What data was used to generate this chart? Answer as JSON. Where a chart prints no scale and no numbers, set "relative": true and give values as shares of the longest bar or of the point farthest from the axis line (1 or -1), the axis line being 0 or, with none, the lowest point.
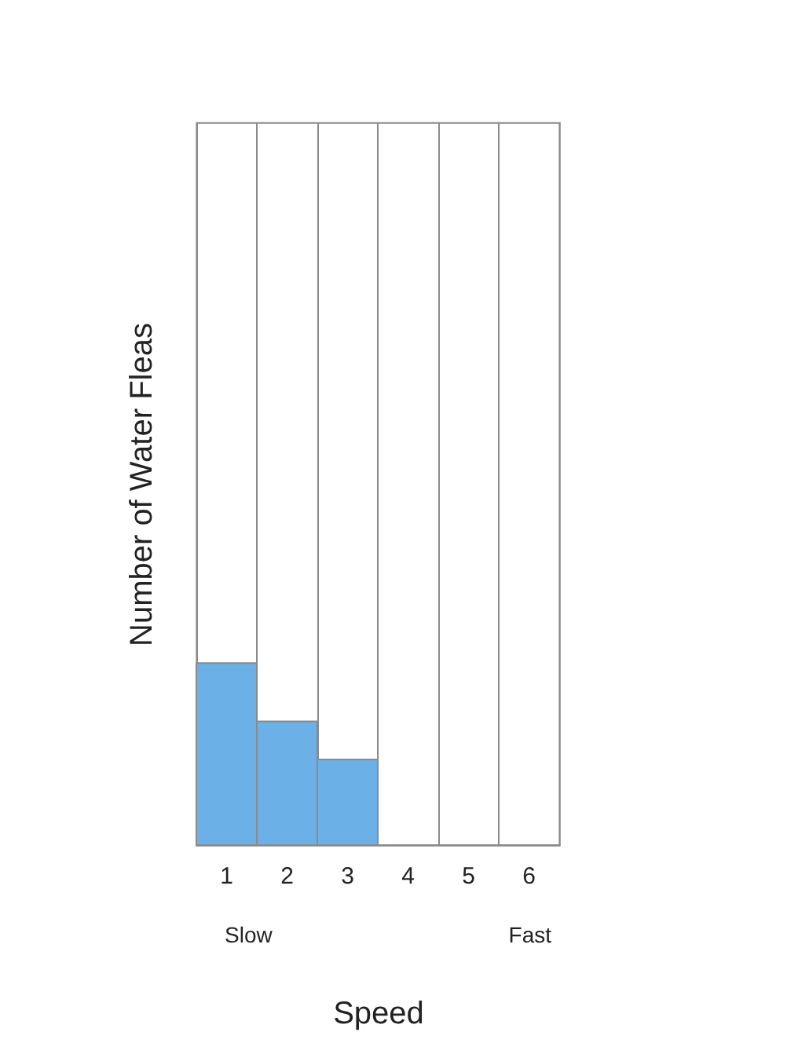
{
  "chart_data": {
    "type": "bar",
    "relative": true,
    "xlabel": "Speed",
    "ylabel": "Number of Water Fleas",
    "categories": [
      "1",
      "2",
      "3",
      "4",
      "5",
      "6"
    ],
    "values": [
      1,
      0.68,
      0.47,
      0,
      0,
      0
    ],
    "color": "#6cb0e8",
    "grid": "x",
    "annotations": [
      "Slow",
      "Fast"
    ]
  }
}
